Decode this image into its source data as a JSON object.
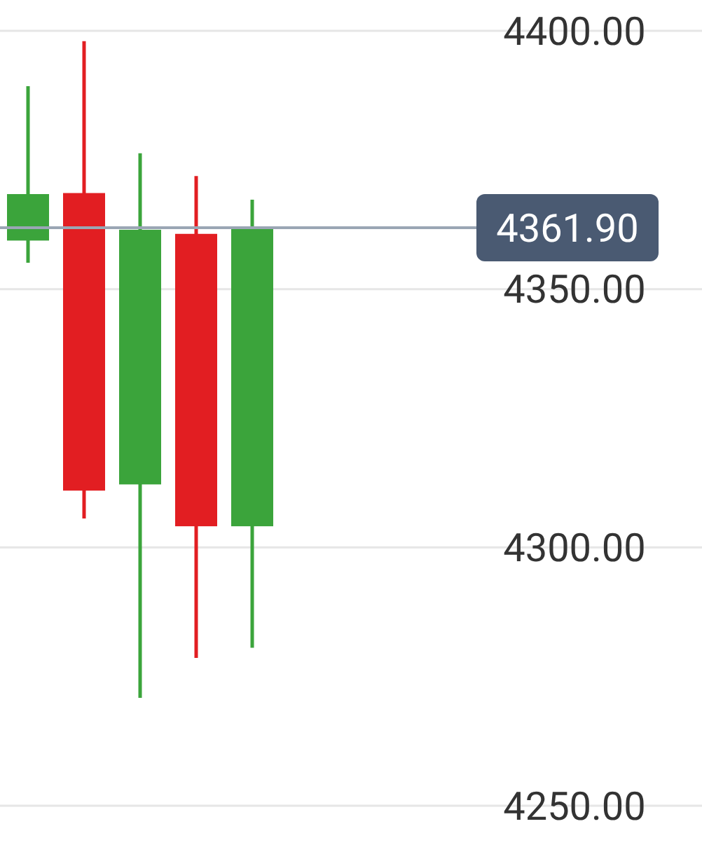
{
  "chart_data": {
    "type": "candlestick",
    "categories": [
      null,
      null,
      null,
      null,
      null
    ],
    "ohlc": [
      [
        4359.4,
        4389.3,
        4355.1,
        4368.4
      ],
      [
        4368.6,
        4398.0,
        4305.6,
        4311.0
      ],
      [
        4312.2,
        4376.3,
        4270.9,
        4361.5
      ],
      [
        4360.7,
        4371.9,
        4278.6,
        4304.1
      ],
      [
        4304.1,
        4367.3,
        4280.6,
        4361.9
      ]
    ],
    "colors": [
      "#3ba43b",
      "#e21e22",
      "#3ba43b",
      "#e21e22",
      "#3ba43b"
    ],
    "ylim": [
      4250,
      4400
    ],
    "yticks": [
      {
        "value": 4250,
        "label": "4250.00"
      },
      {
        "value": 4300,
        "label": "4300.00"
      },
      {
        "value": 4350,
        "label": "4350.00"
      },
      {
        "value": 4400,
        "label": "4400.00"
      }
    ],
    "grid": "y",
    "tick_labels": "y",
    "ref_lines": [
      {
        "axis": "y",
        "value": 4361.9,
        "label": "4361.90",
        "color": "#9aa6b4"
      }
    ]
  }
}
